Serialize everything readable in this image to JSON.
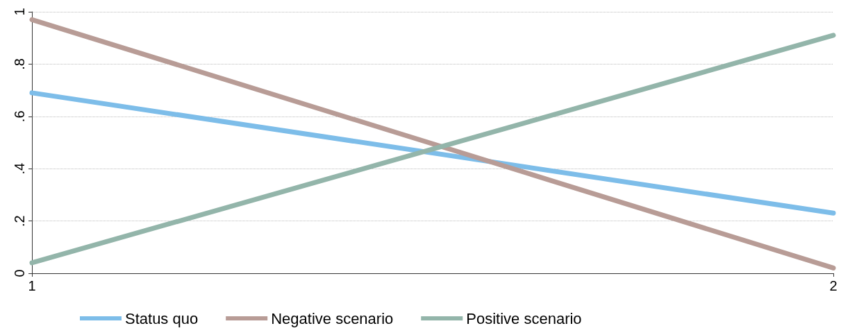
{
  "chart_data": {
    "type": "line",
    "x": [
      1,
      2
    ],
    "series": [
      {
        "name": "Status quo",
        "color": "#7dbde9",
        "values": [
          0.69,
          0.23
        ]
      },
      {
        "name": "Negative scenario",
        "color": "#b89c96",
        "values": [
          0.97,
          0.02
        ]
      },
      {
        "name": "Positive scenario",
        "color": "#93b5aa",
        "values": [
          0.04,
          0.91
        ]
      }
    ],
    "xlim": [
      1,
      2
    ],
    "xticks": [
      1,
      2
    ],
    "ylim": [
      0,
      1
    ],
    "yticks": [
      0,
      {
        "value": 0.2,
        "label": ".2"
      },
      {
        "value": 0.4,
        "label": ".4"
      },
      {
        "value": 0.6,
        "label": ".6"
      },
      {
        "value": 0.8,
        "label": ".8"
      },
      1
    ],
    "grid": "y",
    "legend": "bottom",
    "marker": "none",
    "line_style": "solid"
  }
}
